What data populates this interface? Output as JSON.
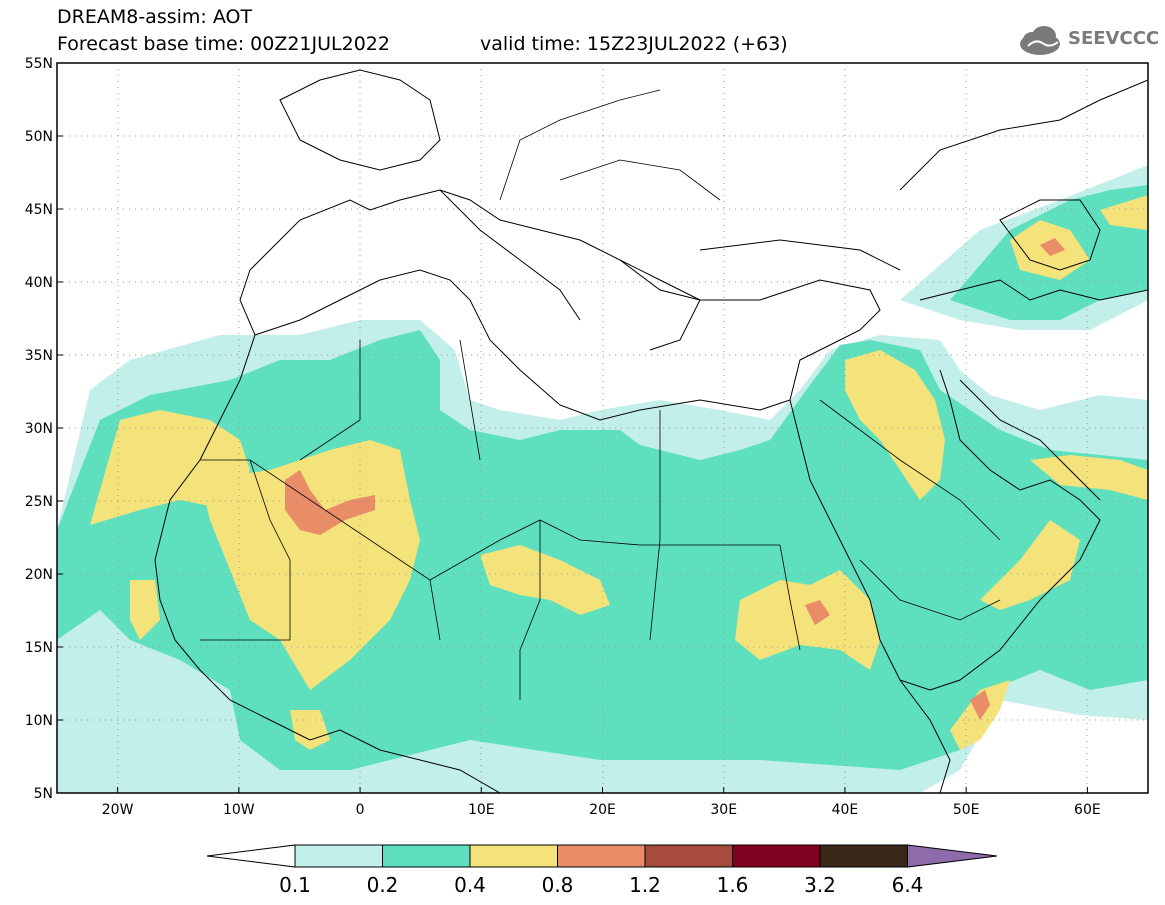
{
  "header": {
    "line1": "DREAM8-assim: AOT",
    "line2": "Forecast base time: 00Z21JUL2022",
    "line3": "valid time: 15Z23JUL2022 (+63)",
    "logo": "SEEVCCC",
    "logo_icon": "cloud-icon"
  },
  "map": {
    "lon_range": [
      -25,
      65
    ],
    "lat_range": [
      5,
      55
    ],
    "lon_ticks": [
      {
        "value": -20,
        "label": "20W"
      },
      {
        "value": -10,
        "label": "10W"
      },
      {
        "value": 0,
        "label": "0"
      },
      {
        "value": 10,
        "label": "10E"
      },
      {
        "value": 20,
        "label": "20E"
      },
      {
        "value": 30,
        "label": "30E"
      },
      {
        "value": 40,
        "label": "40E"
      },
      {
        "value": 50,
        "label": "50E"
      },
      {
        "value": 60,
        "label": "60E"
      }
    ],
    "lat_ticks": [
      {
        "value": 5,
        "label": "5N"
      },
      {
        "value": 10,
        "label": "10N"
      },
      {
        "value": 15,
        "label": "15N"
      },
      {
        "value": 20,
        "label": "20N"
      },
      {
        "value": 25,
        "label": "25N"
      },
      {
        "value": 30,
        "label": "30N"
      },
      {
        "value": 35,
        "label": "35N"
      },
      {
        "value": 40,
        "label": "40N"
      },
      {
        "value": 45,
        "label": "45N"
      },
      {
        "value": 50,
        "label": "50N"
      },
      {
        "value": 55,
        "label": "55N"
      }
    ],
    "grid": "dotted"
  },
  "colorbar": {
    "labels": [
      "0.1",
      "0.2",
      "0.4",
      "0.8",
      "1.2",
      "1.6",
      "3.2",
      "6.4"
    ],
    "colors": [
      "#ffffff",
      "#c2efe9",
      "#5ee0bf",
      "#f4e27a",
      "#e88d67",
      "#a84b3f",
      "#800020",
      "#3a2616",
      "#8e6bab"
    ]
  },
  "chart_data": {
    "type": "heatmap",
    "variable": "AOT",
    "levels": [
      0.1,
      0.2,
      0.4,
      0.8,
      1.2,
      1.6,
      3.2,
      6.4
    ]
  }
}
